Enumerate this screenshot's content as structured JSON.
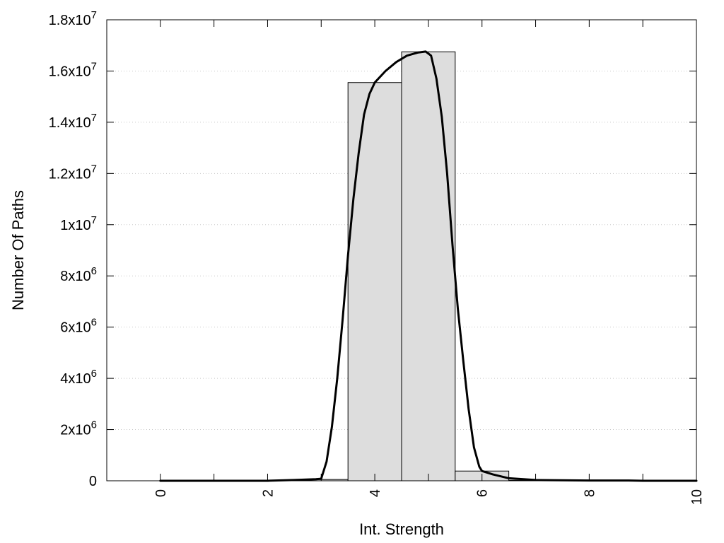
{
  "chart_data": {
    "type": "bar",
    "title": "",
    "xlabel": "Int. Strength",
    "ylabel": "Number Of Paths",
    "xlim": [
      -1,
      10
    ],
    "ylim": [
      0,
      18000000
    ],
    "grid": "horizontal-dotted",
    "legend": "none",
    "x_ticks": [
      0,
      2,
      4,
      6,
      8,
      10
    ],
    "x_tick_labels": [
      "0",
      "2",
      "4",
      "6",
      "8",
      "10"
    ],
    "y_ticks": [
      {
        "value": 0,
        "mantissa": "0",
        "exp": ""
      },
      {
        "value": 2000000,
        "mantissa": "2x10",
        "exp": "6"
      },
      {
        "value": 4000000,
        "mantissa": "4x10",
        "exp": "6"
      },
      {
        "value": 6000000,
        "mantissa": "6x10",
        "exp": "6"
      },
      {
        "value": 8000000,
        "mantissa": "8x10",
        "exp": "6"
      },
      {
        "value": 10000000,
        "mantissa": "1x10",
        "exp": "7"
      },
      {
        "value": 12000000,
        "mantissa": "1.2x10",
        "exp": "7"
      },
      {
        "value": 14000000,
        "mantissa": "1.4x10",
        "exp": "7"
      },
      {
        "value": 16000000,
        "mantissa": "1.6x10",
        "exp": "7"
      },
      {
        "value": 18000000,
        "mantissa": "1.8x10",
        "exp": "7"
      }
    ],
    "bar_width": 1,
    "bars": {
      "x": [
        0,
        1,
        2,
        3,
        4,
        5,
        6,
        7,
        8,
        9,
        10
      ],
      "values": [
        0,
        0,
        0,
        50000,
        15550000,
        16750000,
        380000,
        20000,
        0,
        0,
        0
      ]
    },
    "curve": {
      "x": [
        0,
        1,
        2,
        2.5,
        2.9,
        3.0,
        3.1,
        3.2,
        3.3,
        3.4,
        3.5,
        3.6,
        3.7,
        3.8,
        3.9,
        4.0,
        4.2,
        4.4,
        4.6,
        4.8,
        4.95,
        5.05,
        5.15,
        5.25,
        5.35,
        5.45,
        5.55,
        5.65,
        5.75,
        5.85,
        5.95,
        6.0,
        6.2,
        6.5,
        7.0,
        8.0,
        8.7,
        9.0,
        10.0
      ],
      "values": [
        0,
        0,
        0,
        30000,
        60000,
        80000,
        750000,
        2100000,
        4000000,
        6300000,
        8800000,
        11000000,
        12800000,
        14300000,
        15100000,
        15550000,
        16000000,
        16350000,
        16600000,
        16720000,
        16760000,
        16600000,
        15700000,
        14200000,
        12000000,
        9200000,
        6700000,
        4700000,
        2800000,
        1300000,
        550000,
        380000,
        250000,
        100000,
        30000,
        10000,
        10000,
        0,
        0
      ]
    },
    "colors": {
      "bar_fill": "#dddddd",
      "bar_stroke": "#000000",
      "curve": "#000000",
      "grid": "#c8c8c8"
    }
  }
}
